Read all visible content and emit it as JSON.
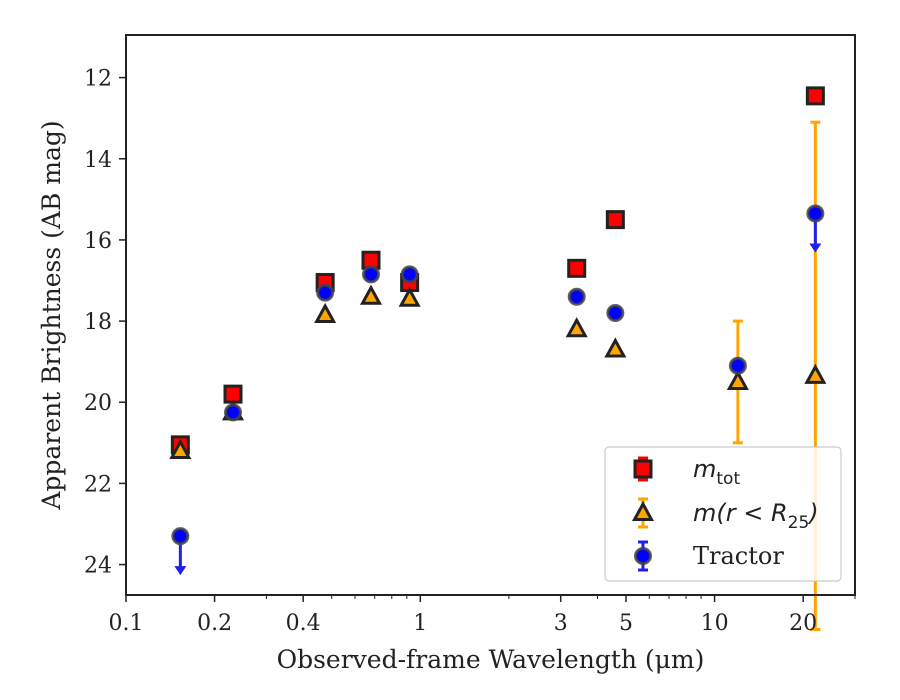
{
  "chart_data": {
    "type": "scatter",
    "xlabel": "Observed-frame Wavelength (μm)",
    "ylabel": "Apparent Brightness (AB mag)",
    "x_scale": "log",
    "xlim": [
      0.1,
      30
    ],
    "ylim": [
      24.75,
      10.95
    ],
    "x_ticks": [
      {
        "value": 0.1,
        "label": "0.1"
      },
      {
        "value": 0.2,
        "label": "0.2"
      },
      {
        "value": 0.4,
        "label": "0.4"
      },
      {
        "value": 1,
        "label": "1"
      },
      {
        "value": 3,
        "label": "3"
      },
      {
        "value": 5,
        "label": "5"
      },
      {
        "value": 10,
        "label": "10"
      },
      {
        "value": 20,
        "label": "20"
      }
    ],
    "y_ticks": [
      {
        "value": 12,
        "label": "12"
      },
      {
        "value": 14,
        "label": "14"
      },
      {
        "value": 16,
        "label": "16"
      },
      {
        "value": 18,
        "label": "18"
      },
      {
        "value": 20,
        "label": "20"
      },
      {
        "value": 22,
        "label": "22"
      },
      {
        "value": 24,
        "label": "24"
      }
    ],
    "legend": {
      "position": "lower-right",
      "entries": [
        {
          "base": "m",
          "sub": "tot",
          "suffix": ""
        },
        {
          "base": "m(r < R",
          "sub": "25",
          "suffix": ")"
        },
        {
          "base": "Tractor",
          "sub": "",
          "suffix": ""
        }
      ]
    },
    "series": [
      {
        "marker": "square",
        "color": "#ff0000",
        "errcolor": "#ff0000",
        "points": [
          {
            "x": 0.153,
            "y": 21.05,
            "err": 0.15
          },
          {
            "x": 0.231,
            "y": 19.8,
            "err": 0.1
          },
          {
            "x": 0.475,
            "y": 17.05,
            "err": 0.05
          },
          {
            "x": 0.68,
            "y": 16.5,
            "err": 0.05
          },
          {
            "x": 0.92,
            "y": 17.05,
            "err": 0.08
          },
          {
            "x": 3.4,
            "y": 16.7,
            "err": 0.05
          },
          {
            "x": 4.6,
            "y": 15.5,
            "err": 0.05
          },
          {
            "x": 22.0,
            "y": 12.45,
            "err": 0.05
          }
        ]
      },
      {
        "marker": "triangle",
        "color": "#ffa500",
        "errcolor": "#ffa500",
        "points": [
          {
            "x": 0.153,
            "y": 21.2,
            "err": 0.05
          },
          {
            "x": 0.231,
            "y": 20.25,
            "err": 0.05
          },
          {
            "x": 0.475,
            "y": 17.85,
            "err": 0.05
          },
          {
            "x": 0.68,
            "y": 17.4,
            "err": 0.05
          },
          {
            "x": 0.92,
            "y": 17.45,
            "err": 0.05
          },
          {
            "x": 3.4,
            "y": 18.2,
            "err": 0.05
          },
          {
            "x": 4.6,
            "y": 18.7,
            "err": 0.05
          },
          {
            "x": 12.0,
            "y": 19.5,
            "err": 1.5
          },
          {
            "x": 22.0,
            "y": 19.35,
            "err": 6.25
          }
        ]
      },
      {
        "marker": "circle",
        "color": "#0000ff",
        "errcolor": "#2020e8",
        "points": [
          {
            "x": 0.153,
            "y": 23.3,
            "err": 0,
            "upper_limit": true
          },
          {
            "x": 0.231,
            "y": 20.25,
            "err": 0.05
          },
          {
            "x": 0.475,
            "y": 17.3,
            "err": 0.05
          },
          {
            "x": 0.68,
            "y": 16.85,
            "err": 0.05
          },
          {
            "x": 0.92,
            "y": 16.85,
            "err": 0.05
          },
          {
            "x": 3.4,
            "y": 17.4,
            "err": 0.05
          },
          {
            "x": 4.6,
            "y": 17.8,
            "err": 0.05
          },
          {
            "x": 12.0,
            "y": 19.1,
            "err": 0.05
          },
          {
            "x": 22.0,
            "y": 15.35,
            "err": 0,
            "upper_limit": true
          }
        ]
      }
    ]
  }
}
